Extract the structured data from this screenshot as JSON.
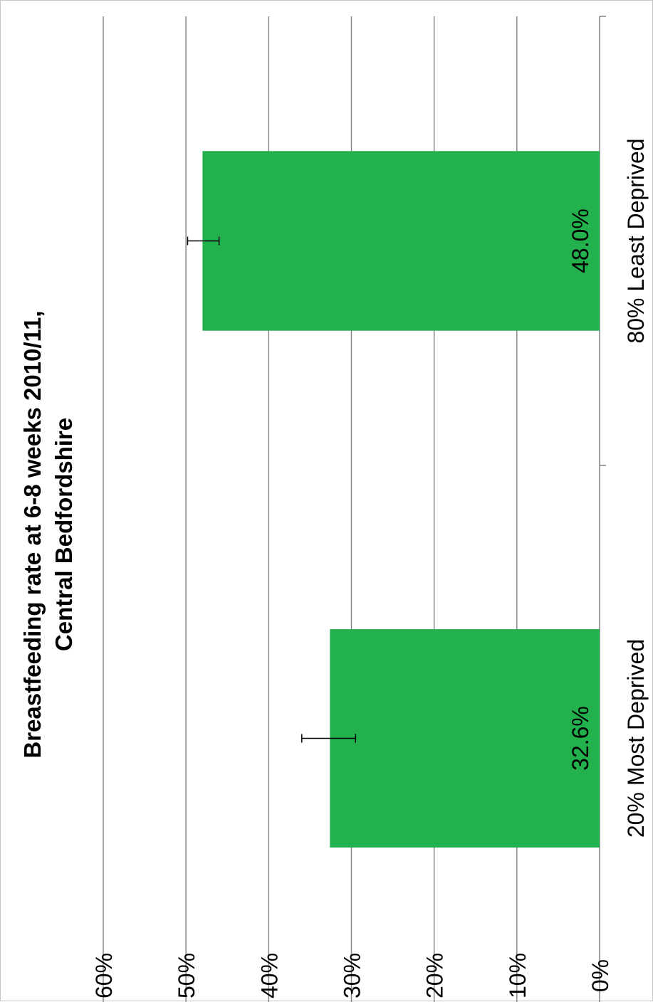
{
  "chart_data": {
    "type": "bar",
    "orientation": "rotated-90-clockwise",
    "title": [
      "Breastfeeding rate at 6-8 weeks 2010/11,",
      "Central Bedfordshire"
    ],
    "categories": [
      "20% Most Deprived",
      "80% Least Deprived"
    ],
    "values": [
      32.6,
      48.0
    ],
    "data_labels": [
      "32.6%",
      "48.0%"
    ],
    "error_bars": [
      {
        "low": 29.5,
        "high": 36.0
      },
      {
        "low": 46.0,
        "high": 49.8
      }
    ],
    "y_ticks": [
      "0%",
      "10%",
      "20%",
      "30%",
      "40%",
      "50%",
      "60%"
    ],
    "ylim": [
      0,
      60
    ],
    "grid": true,
    "legend": "none",
    "colors": {
      "bar": "#23b14d",
      "grid": "#888888",
      "axis": "#808080",
      "error_bar": "#000000"
    }
  }
}
